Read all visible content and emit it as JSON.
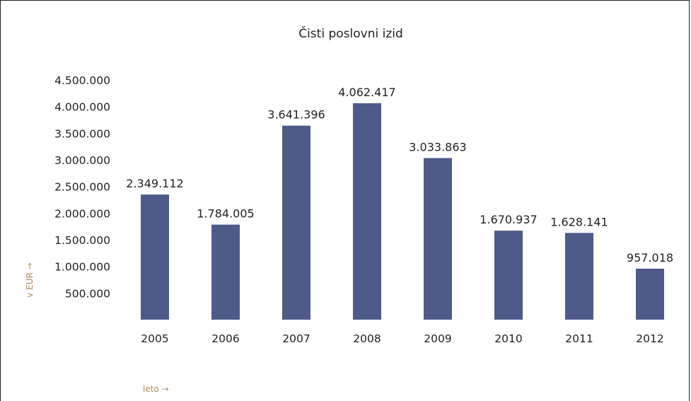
{
  "chart_data": {
    "type": "bar",
    "title": "Čisti poslovni izid",
    "xlabel": "leto →",
    "ylabel": "v EUR →",
    "categories": [
      "2005",
      "2006",
      "2007",
      "2008",
      "2009",
      "2010",
      "2011",
      "2012"
    ],
    "values": [
      2349112,
      1784005,
      3641396,
      4062417,
      3033863,
      1670937,
      1628141,
      957018
    ],
    "data_labels": [
      "2.349.112",
      "1.784.005",
      "3.641.396",
      "4.062.417",
      "3.033.863",
      "1.670.937",
      "1.628.141",
      "957.018"
    ],
    "ylim": [
      0,
      4500000
    ],
    "yticks": [
      500000,
      1000000,
      1500000,
      2000000,
      2500000,
      3000000,
      3500000,
      4000000,
      4500000
    ],
    "ytick_labels": [
      "500.000",
      "1.000.000",
      "1.500.000",
      "2.000.000",
      "2.500.000",
      "3.000.000",
      "3.500.000",
      "4.000.000",
      "4.500.000"
    ],
    "bar_color": "#4e5b88",
    "grid": false,
    "legend": "none"
  }
}
